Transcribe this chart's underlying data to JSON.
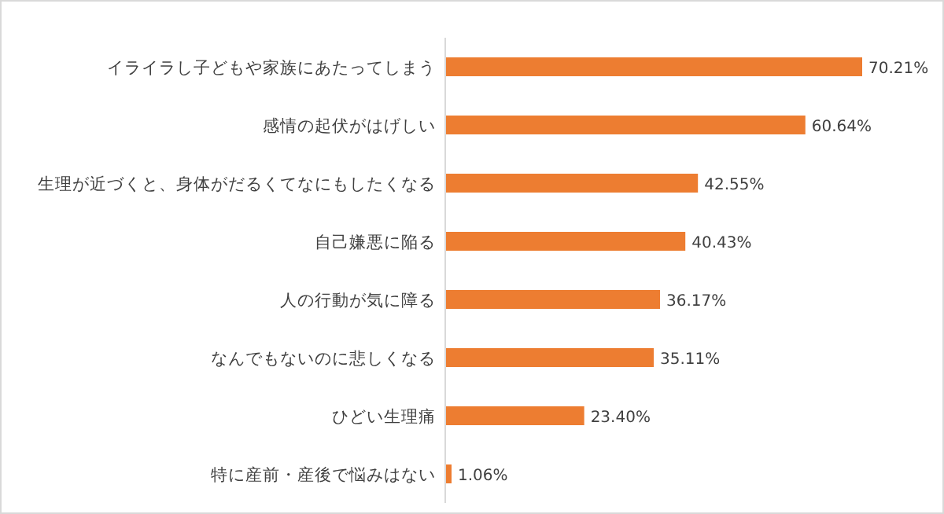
{
  "chart_data": {
    "type": "bar",
    "orientation": "horizontal",
    "color": "#ed7d31",
    "categories": [
      "イライラし子どもや家族にあたってしまう",
      "感情の起伏がはげしい",
      "生理が近づくと、身体がだるくてなにもしたくなる",
      "自己嫌悪に陥る",
      "人の行動が気に障る",
      "なんでもないのに悲しくなる",
      "ひどい生理痛",
      "特に産前・産後で悩みはない"
    ],
    "values": [
      70.21,
      60.64,
      42.55,
      40.43,
      36.17,
      35.11,
      23.4,
      1.06
    ],
    "value_labels": [
      "70.21%",
      "60.64%",
      "42.55%",
      "40.43%",
      "36.17%",
      "35.11%",
      "23.40%",
      "1.06%"
    ]
  }
}
